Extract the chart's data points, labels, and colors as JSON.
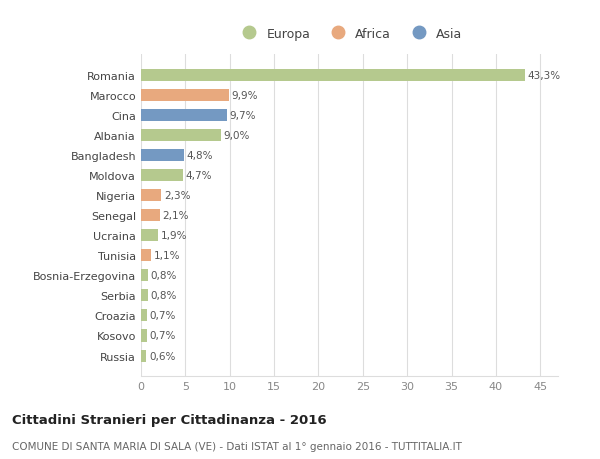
{
  "countries": [
    "Romania",
    "Marocco",
    "Cina",
    "Albania",
    "Bangladesh",
    "Moldova",
    "Nigeria",
    "Senegal",
    "Ucraina",
    "Tunisia",
    "Bosnia-Erzegovina",
    "Serbia",
    "Croazia",
    "Kosovo",
    "Russia"
  ],
  "values": [
    43.3,
    9.9,
    9.7,
    9.0,
    4.8,
    4.7,
    2.3,
    2.1,
    1.9,
    1.1,
    0.8,
    0.8,
    0.7,
    0.7,
    0.6
  ],
  "labels": [
    "43,3%",
    "9,9%",
    "9,7%",
    "9,0%",
    "4,8%",
    "4,7%",
    "2,3%",
    "2,1%",
    "1,9%",
    "1,1%",
    "0,8%",
    "0,8%",
    "0,7%",
    "0,7%",
    "0,6%"
  ],
  "continents": [
    "Europa",
    "Africa",
    "Asia",
    "Europa",
    "Asia",
    "Europa",
    "Africa",
    "Africa",
    "Europa",
    "Africa",
    "Europa",
    "Europa",
    "Europa",
    "Europa",
    "Europa"
  ],
  "colors": {
    "Europa": "#b5c98e",
    "Africa": "#e8a97e",
    "Asia": "#7499c2"
  },
  "title": "Cittadini Stranieri per Cittadinanza - 2016",
  "subtitle": "COMUNE DI SANTA MARIA DI SALA (VE) - Dati ISTAT al 1° gennaio 2016 - TUTTITALIA.IT",
  "xlim": [
    0,
    47
  ],
  "xticks": [
    0,
    5,
    10,
    15,
    20,
    25,
    30,
    35,
    40,
    45
  ],
  "background_color": "#ffffff",
  "grid_color": "#dddddd",
  "bar_height": 0.6
}
